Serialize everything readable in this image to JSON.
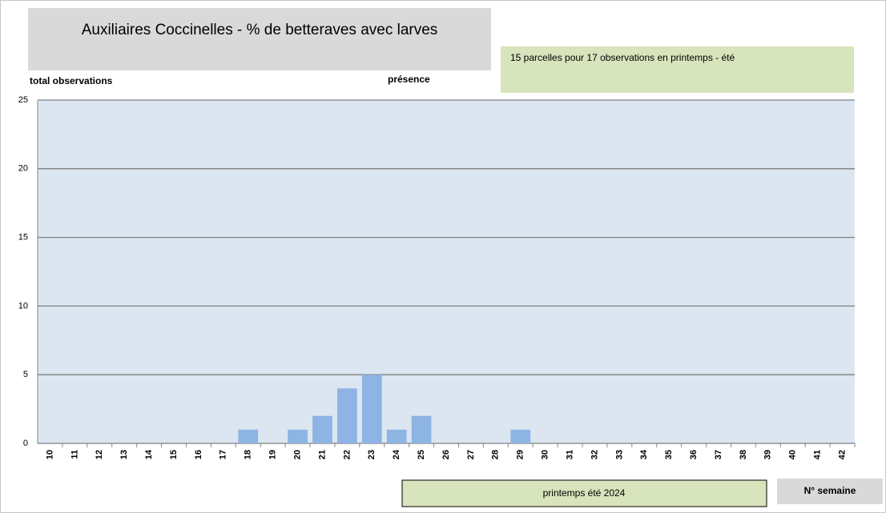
{
  "chart_data": {
    "type": "bar",
    "title": "Auxiliaires Coccinelles - % de betteraves avec larves",
    "note": "15 parcelles pour 17 observations en printemps - été",
    "y_label": "total observations",
    "series_label": "présence",
    "period_label": "printemps été 2024",
    "x_label": "N° semaine",
    "categories": [
      "10",
      "11",
      "12",
      "13",
      "14",
      "15",
      "16",
      "17",
      "18",
      "19",
      "20",
      "21",
      "22",
      "23",
      "24",
      "25",
      "26",
      "27",
      "28",
      "29",
      "30",
      "31",
      "32",
      "33",
      "34",
      "35",
      "36",
      "37",
      "38",
      "39",
      "40",
      "41",
      "42"
    ],
    "values": [
      0,
      0,
      0,
      0,
      0,
      0,
      0,
      0,
      1,
      0,
      1,
      2,
      4,
      5,
      1,
      2,
      0,
      0,
      0,
      1,
      0,
      0,
      0,
      0,
      0,
      0,
      0,
      0,
      0,
      0,
      0,
      0,
      0
    ],
    "color": "#8db4e2",
    "ylim": [
      0,
      25
    ],
    "yticks": [
      0,
      5,
      10,
      15,
      20,
      25
    ],
    "grid": true
  }
}
